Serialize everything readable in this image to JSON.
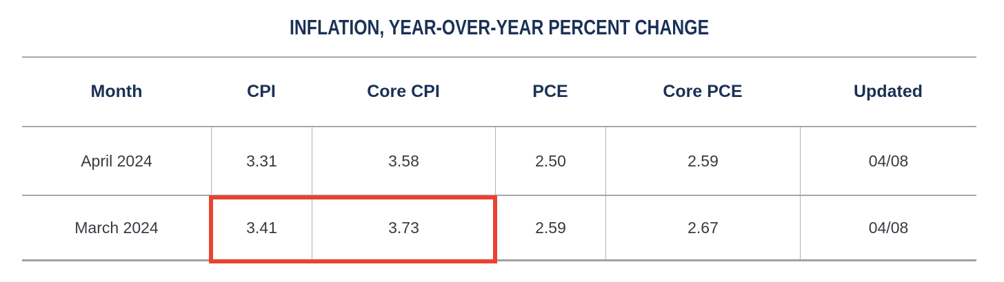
{
  "title": "INFLATION, YEAR-OVER-YEAR PERCENT CHANGE",
  "table": {
    "columns": [
      "Month",
      "CPI",
      "Core CPI",
      "PCE",
      "Core PCE",
      "Updated"
    ],
    "rows": [
      {
        "cells": [
          "April 2024",
          "3.31",
          "3.58",
          "2.50",
          "2.59",
          "04/08"
        ]
      },
      {
        "cells": [
          "March 2024",
          "3.41",
          "3.73",
          "2.59",
          "2.67",
          "04/08"
        ]
      }
    ],
    "highlighted_cells": {
      "row": "March 2024",
      "columns": [
        "CPI",
        "Core CPI"
      ],
      "values": [
        "3.41",
        "3.73"
      ]
    }
  },
  "chart_data": {
    "type": "table",
    "title": "INFLATION, YEAR-OVER-YEAR PERCENT CHANGE",
    "columns": [
      "Month",
      "CPI",
      "Core CPI",
      "PCE",
      "Core PCE",
      "Updated"
    ],
    "rows": [
      [
        "April 2024",
        3.31,
        3.58,
        2.5,
        2.59,
        "04/08"
      ],
      [
        "March 2024",
        3.41,
        3.73,
        2.59,
        2.67,
        "04/08"
      ]
    ],
    "annotations": [
      "Red box highlights March 2024 CPI (3.41) and Core CPI (3.73)"
    ]
  },
  "colors": {
    "heading_navy": "#1b3156",
    "body_text": "#363b42",
    "grid_line": "#a6a7aa",
    "highlight_red": "#e8432e",
    "background": "#ffffff"
  }
}
